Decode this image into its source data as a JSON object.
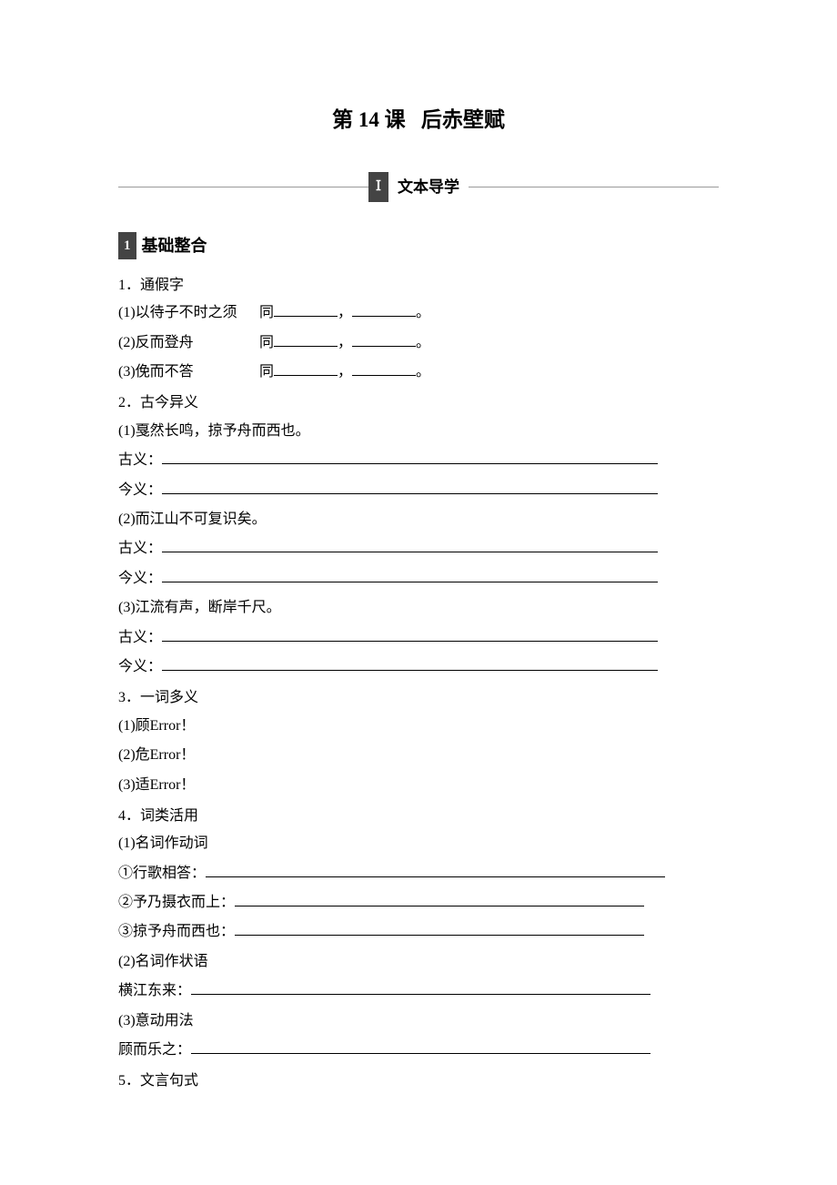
{
  "title_prefix": "第 14 课",
  "title_main": "后赤壁赋",
  "section1": {
    "roman": "Ⅰ",
    "label": "文本导学"
  },
  "subsection1": {
    "num": "1",
    "title": "基础整合"
  },
  "q1": {
    "heading": "1．通假字",
    "items": [
      {
        "left": "(1)以待子不时之须",
        "mid": "同",
        "sep": "，",
        "end": "。"
      },
      {
        "left": "(2)反而登舟",
        "mid": "同",
        "sep": "，",
        "end": "。"
      },
      {
        "left": "(3)俛而不答",
        "mid": "同",
        "sep": "，",
        "end": "。"
      }
    ]
  },
  "q2": {
    "heading": "2．古今异义",
    "items": [
      {
        "text": "(1)戛然长鸣，掠予舟而西也。"
      },
      {
        "text": "(2)而江山不可复识矣。"
      },
      {
        "text": "(3)江流有声，断岸千尺。"
      }
    ],
    "gu": "古义：",
    "jin": "今义："
  },
  "q3": {
    "heading": "3．一词多义",
    "items": [
      "(1)顾Error！",
      "(2)危Error！",
      "(3)适Error！"
    ]
  },
  "q4": {
    "heading": "4．词类活用",
    "sub1": "(1)名词作动词",
    "sub1_items": [
      "①行歌相答：",
      "②予乃摄衣而上：",
      "③掠予舟而西也："
    ],
    "sub2": "(2)名词作状语",
    "sub2_item": "横江东来：",
    "sub3": "(3)意动用法",
    "sub3_item": "顾而乐之："
  },
  "q5": {
    "heading": "5．文言句式"
  },
  "colors": {
    "text": "#000000",
    "bg": "#ffffff",
    "box_bg": "#444444",
    "box_text": "#ffffff"
  },
  "typography": {
    "title_fontsize": 23,
    "body_fontsize": 16,
    "subtitle_fontsize": 18
  }
}
